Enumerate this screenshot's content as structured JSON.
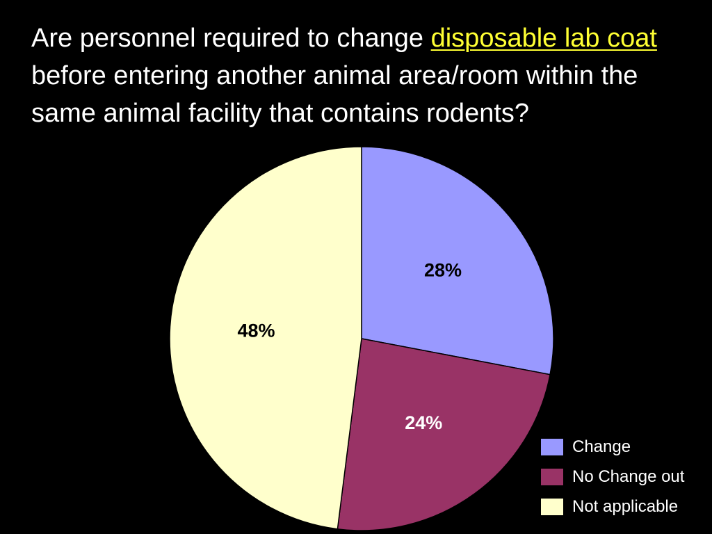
{
  "title": {
    "part1": "Are personnel required to change ",
    "highlight": "disposable lab coat",
    "part2": " before entering another animal area/room within the same animal facility that contains rodents?"
  },
  "colors": {
    "background": "#000000",
    "title_text": "#ffffff",
    "highlight_text": "#ffff33"
  },
  "chart_data": {
    "type": "pie",
    "title": "",
    "start_angle_deg": 0,
    "direction": "clockwise",
    "slices": [
      {
        "name": "Change",
        "value": 28,
        "label": "28%",
        "color": "#9999ff"
      },
      {
        "name": "No Change out",
        "value": 24,
        "label": "24%",
        "color": "#993366"
      },
      {
        "name": "Not applicable",
        "value": 48,
        "label": "48%",
        "color": "#ffffcc"
      }
    ],
    "legend_position": "bottom-right"
  },
  "legend": {
    "items": [
      {
        "label": "Change",
        "color": "#9999ff"
      },
      {
        "label": "No Change out",
        "color": "#993366"
      },
      {
        "label": "Not applicable",
        "color": "#ffffcc"
      }
    ]
  }
}
